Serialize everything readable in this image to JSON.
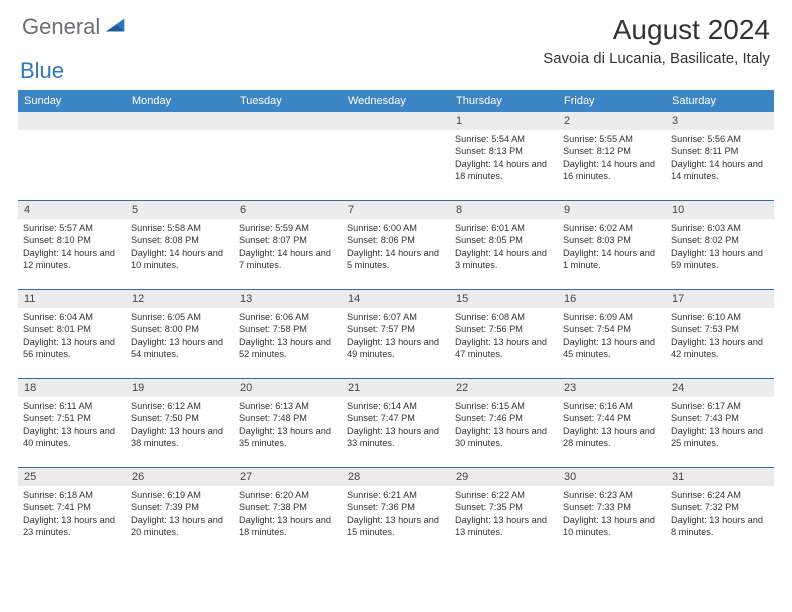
{
  "logo": {
    "general": "General",
    "blue": "Blue"
  },
  "title": "August 2024",
  "location": "Savoia di Lucania, Basilicate, Italy",
  "colors": {
    "header_bg": "#3b85c5",
    "week_border": "#2f6ea9",
    "daynum_bg": "#ececec",
    "text": "#333333",
    "logo_gray": "#6b6f74",
    "logo_blue": "#2f76ba"
  },
  "dow": [
    "Sunday",
    "Monday",
    "Tuesday",
    "Wednesday",
    "Thursday",
    "Friday",
    "Saturday"
  ],
  "days": [
    {
      "n": "",
      "sr": "",
      "ss": "",
      "dl": ""
    },
    {
      "n": "",
      "sr": "",
      "ss": "",
      "dl": ""
    },
    {
      "n": "",
      "sr": "",
      "ss": "",
      "dl": ""
    },
    {
      "n": "",
      "sr": "",
      "ss": "",
      "dl": ""
    },
    {
      "n": "1",
      "sr": "Sunrise: 5:54 AM",
      "ss": "Sunset: 8:13 PM",
      "dl": "Daylight: 14 hours and 18 minutes."
    },
    {
      "n": "2",
      "sr": "Sunrise: 5:55 AM",
      "ss": "Sunset: 8:12 PM",
      "dl": "Daylight: 14 hours and 16 minutes."
    },
    {
      "n": "3",
      "sr": "Sunrise: 5:56 AM",
      "ss": "Sunset: 8:11 PM",
      "dl": "Daylight: 14 hours and 14 minutes."
    },
    {
      "n": "4",
      "sr": "Sunrise: 5:57 AM",
      "ss": "Sunset: 8:10 PM",
      "dl": "Daylight: 14 hours and 12 minutes."
    },
    {
      "n": "5",
      "sr": "Sunrise: 5:58 AM",
      "ss": "Sunset: 8:08 PM",
      "dl": "Daylight: 14 hours and 10 minutes."
    },
    {
      "n": "6",
      "sr": "Sunrise: 5:59 AM",
      "ss": "Sunset: 8:07 PM",
      "dl": "Daylight: 14 hours and 7 minutes."
    },
    {
      "n": "7",
      "sr": "Sunrise: 6:00 AM",
      "ss": "Sunset: 8:06 PM",
      "dl": "Daylight: 14 hours and 5 minutes."
    },
    {
      "n": "8",
      "sr": "Sunrise: 6:01 AM",
      "ss": "Sunset: 8:05 PM",
      "dl": "Daylight: 14 hours and 3 minutes."
    },
    {
      "n": "9",
      "sr": "Sunrise: 6:02 AM",
      "ss": "Sunset: 8:03 PM",
      "dl": "Daylight: 14 hours and 1 minute."
    },
    {
      "n": "10",
      "sr": "Sunrise: 6:03 AM",
      "ss": "Sunset: 8:02 PM",
      "dl": "Daylight: 13 hours and 59 minutes."
    },
    {
      "n": "11",
      "sr": "Sunrise: 6:04 AM",
      "ss": "Sunset: 8:01 PM",
      "dl": "Daylight: 13 hours and 56 minutes."
    },
    {
      "n": "12",
      "sr": "Sunrise: 6:05 AM",
      "ss": "Sunset: 8:00 PM",
      "dl": "Daylight: 13 hours and 54 minutes."
    },
    {
      "n": "13",
      "sr": "Sunrise: 6:06 AM",
      "ss": "Sunset: 7:58 PM",
      "dl": "Daylight: 13 hours and 52 minutes."
    },
    {
      "n": "14",
      "sr": "Sunrise: 6:07 AM",
      "ss": "Sunset: 7:57 PM",
      "dl": "Daylight: 13 hours and 49 minutes."
    },
    {
      "n": "15",
      "sr": "Sunrise: 6:08 AM",
      "ss": "Sunset: 7:56 PM",
      "dl": "Daylight: 13 hours and 47 minutes."
    },
    {
      "n": "16",
      "sr": "Sunrise: 6:09 AM",
      "ss": "Sunset: 7:54 PM",
      "dl": "Daylight: 13 hours and 45 minutes."
    },
    {
      "n": "17",
      "sr": "Sunrise: 6:10 AM",
      "ss": "Sunset: 7:53 PM",
      "dl": "Daylight: 13 hours and 42 minutes."
    },
    {
      "n": "18",
      "sr": "Sunrise: 6:11 AM",
      "ss": "Sunset: 7:51 PM",
      "dl": "Daylight: 13 hours and 40 minutes."
    },
    {
      "n": "19",
      "sr": "Sunrise: 6:12 AM",
      "ss": "Sunset: 7:50 PM",
      "dl": "Daylight: 13 hours and 38 minutes."
    },
    {
      "n": "20",
      "sr": "Sunrise: 6:13 AM",
      "ss": "Sunset: 7:48 PM",
      "dl": "Daylight: 13 hours and 35 minutes."
    },
    {
      "n": "21",
      "sr": "Sunrise: 6:14 AM",
      "ss": "Sunset: 7:47 PM",
      "dl": "Daylight: 13 hours and 33 minutes."
    },
    {
      "n": "22",
      "sr": "Sunrise: 6:15 AM",
      "ss": "Sunset: 7:46 PM",
      "dl": "Daylight: 13 hours and 30 minutes."
    },
    {
      "n": "23",
      "sr": "Sunrise: 6:16 AM",
      "ss": "Sunset: 7:44 PM",
      "dl": "Daylight: 13 hours and 28 minutes."
    },
    {
      "n": "24",
      "sr": "Sunrise: 6:17 AM",
      "ss": "Sunset: 7:43 PM",
      "dl": "Daylight: 13 hours and 25 minutes."
    },
    {
      "n": "25",
      "sr": "Sunrise: 6:18 AM",
      "ss": "Sunset: 7:41 PM",
      "dl": "Daylight: 13 hours and 23 minutes."
    },
    {
      "n": "26",
      "sr": "Sunrise: 6:19 AM",
      "ss": "Sunset: 7:39 PM",
      "dl": "Daylight: 13 hours and 20 minutes."
    },
    {
      "n": "27",
      "sr": "Sunrise: 6:20 AM",
      "ss": "Sunset: 7:38 PM",
      "dl": "Daylight: 13 hours and 18 minutes."
    },
    {
      "n": "28",
      "sr": "Sunrise: 6:21 AM",
      "ss": "Sunset: 7:36 PM",
      "dl": "Daylight: 13 hours and 15 minutes."
    },
    {
      "n": "29",
      "sr": "Sunrise: 6:22 AM",
      "ss": "Sunset: 7:35 PM",
      "dl": "Daylight: 13 hours and 13 minutes."
    },
    {
      "n": "30",
      "sr": "Sunrise: 6:23 AM",
      "ss": "Sunset: 7:33 PM",
      "dl": "Daylight: 13 hours and 10 minutes."
    },
    {
      "n": "31",
      "sr": "Sunrise: 6:24 AM",
      "ss": "Sunset: 7:32 PM",
      "dl": "Daylight: 13 hours and 8 minutes."
    }
  ]
}
